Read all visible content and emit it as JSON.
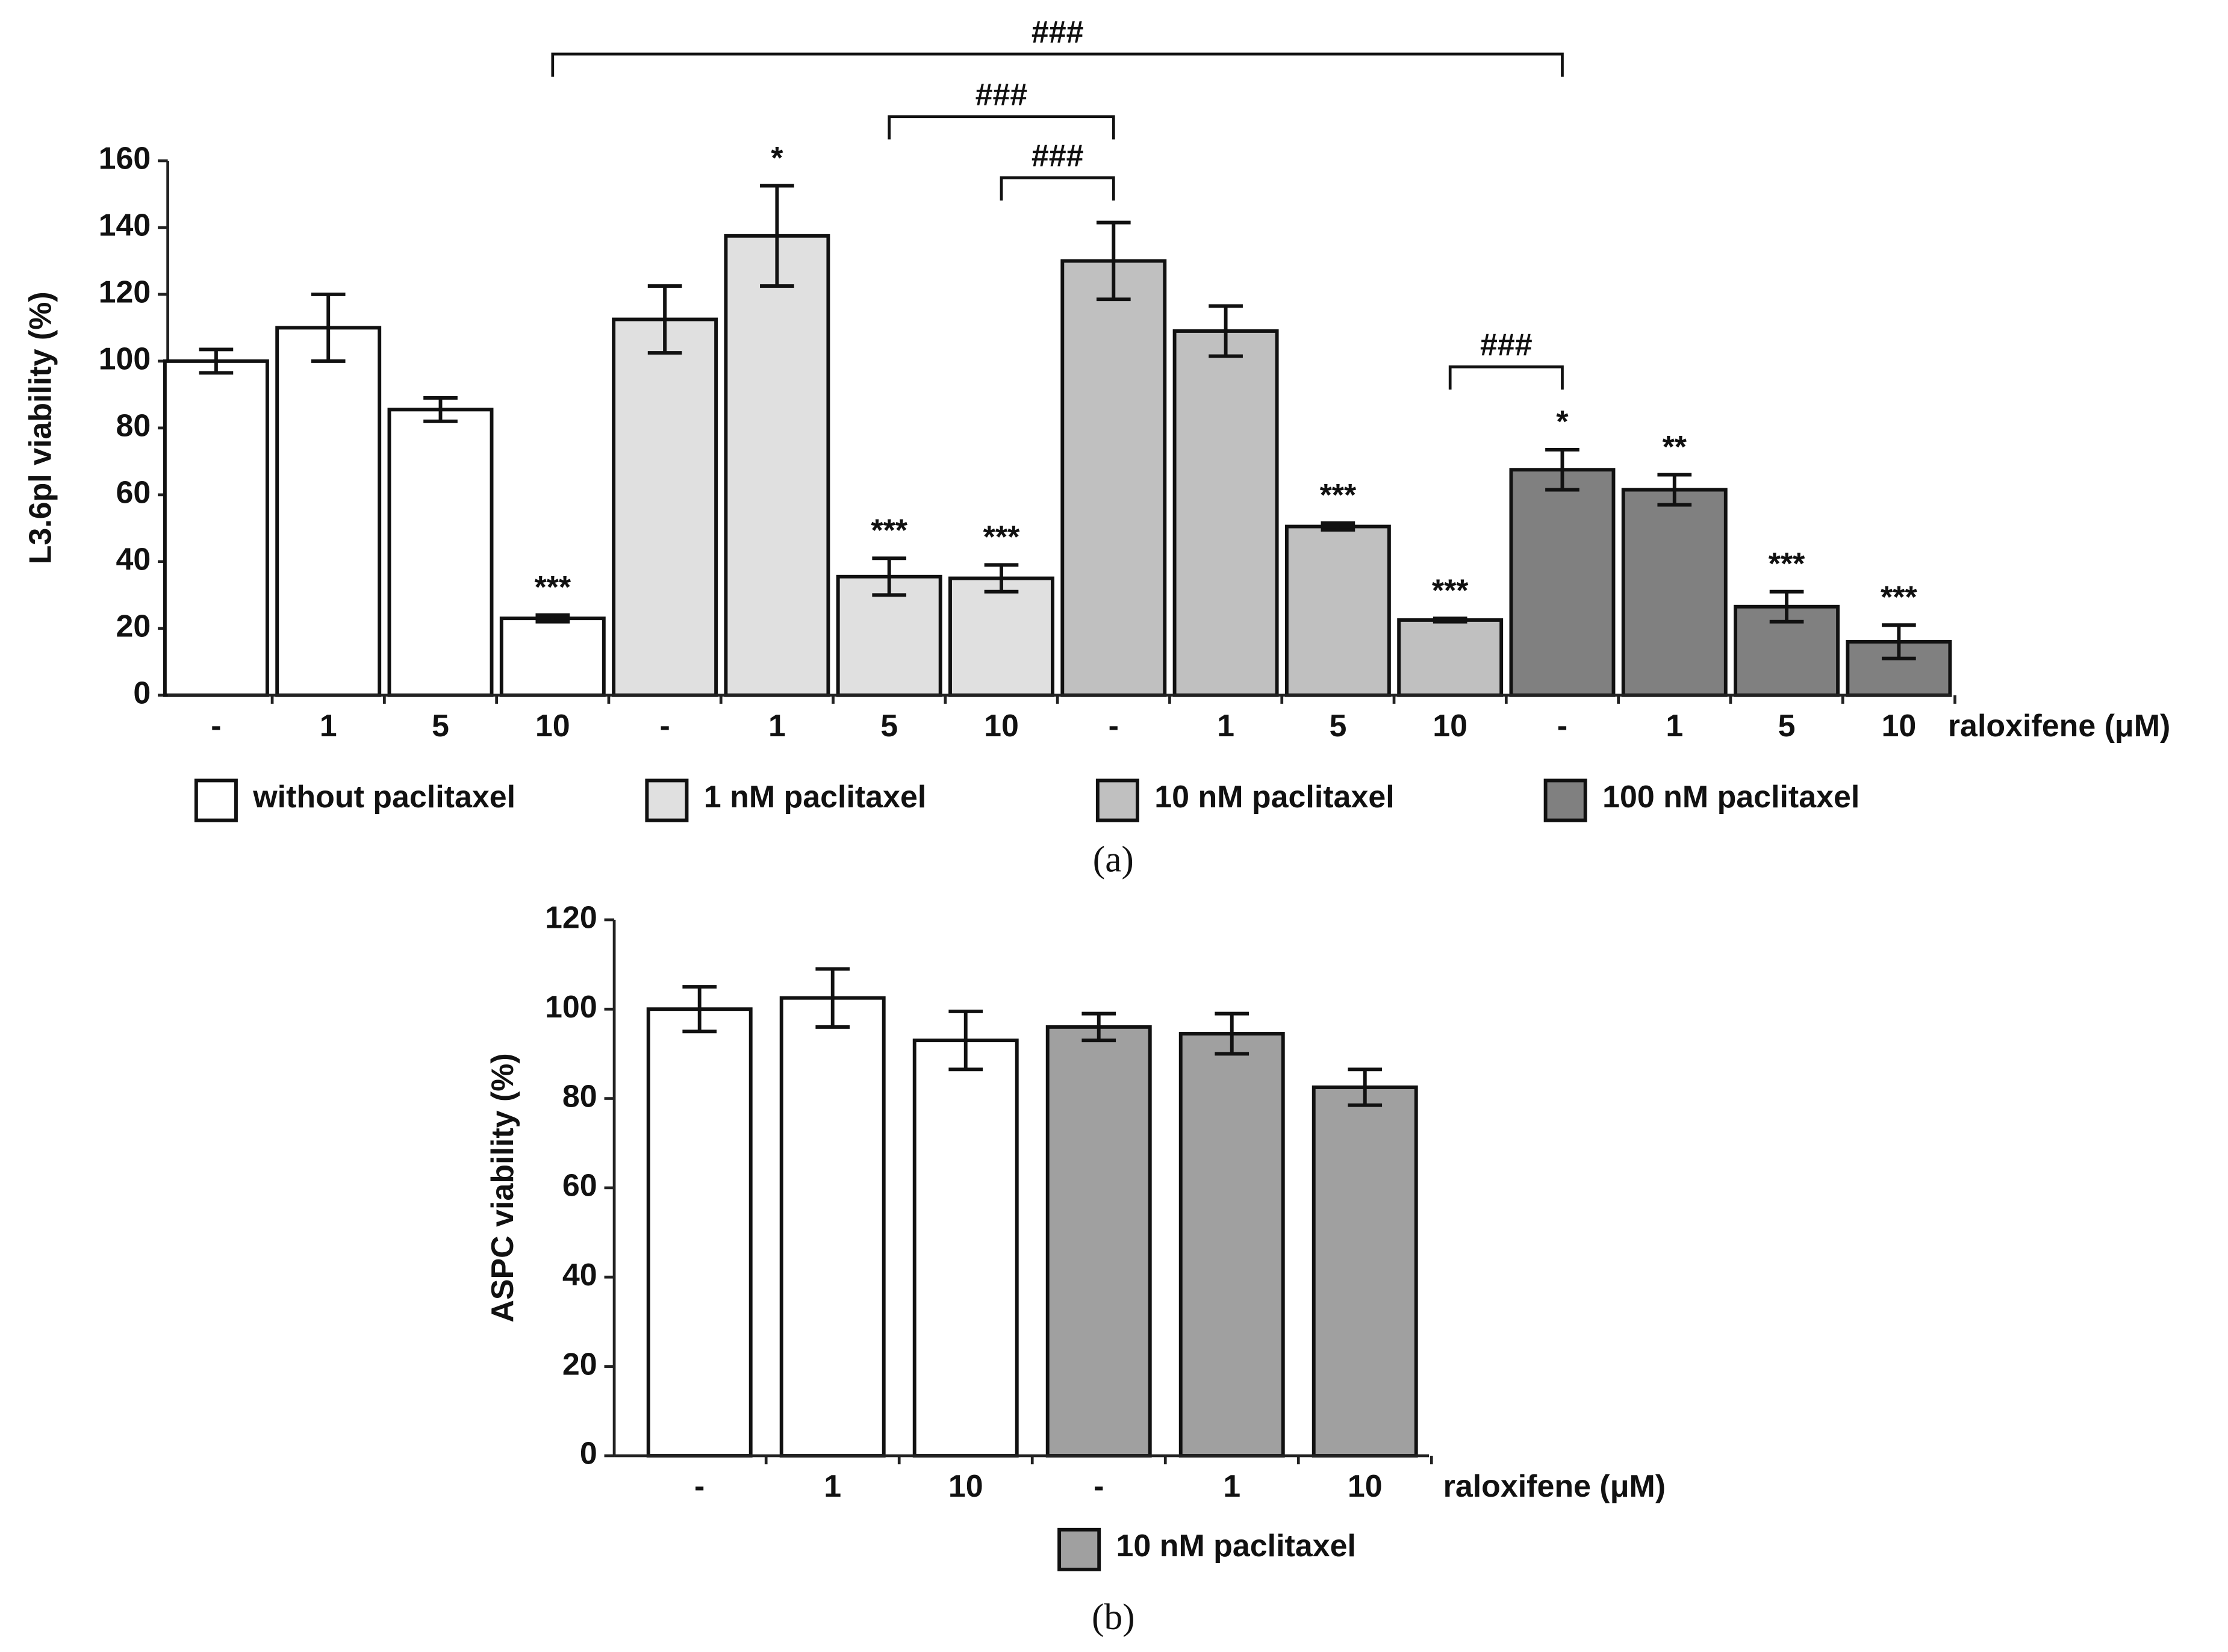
{
  "chart_data": [
    {
      "type": "bar",
      "caption": "(a)",
      "y_label": "L3.6pl viability (%)",
      "x_label": "raloxifene (μM)",
      "categories": [
        "-",
        "1",
        "5",
        "10",
        "-",
        "1",
        "5",
        "10",
        "-",
        "1",
        "5",
        "10",
        "-",
        "1",
        "5",
        "10"
      ],
      "series": [
        {
          "name": "without paclitaxel",
          "color": "#ffffff",
          "values": [
            100,
            110,
            85.5,
            23,
            null,
            null,
            null,
            null,
            null,
            null,
            null,
            null,
            null,
            null,
            null,
            null
          ],
          "errors": [
            3.5,
            10,
            3.5,
            1,
            null,
            null,
            null,
            null,
            null,
            null,
            null,
            null,
            null,
            null,
            null,
            null
          ]
        },
        {
          "name": "1 nM paclitaxel",
          "color": "#e0e0e0",
          "values": [
            null,
            null,
            null,
            null,
            112.5,
            137.5,
            35.5,
            35,
            null,
            null,
            null,
            null,
            null,
            null,
            null,
            null
          ],
          "errors": [
            null,
            null,
            null,
            null,
            10,
            15,
            5.5,
            4,
            null,
            null,
            null,
            null,
            null,
            null,
            null,
            null
          ]
        },
        {
          "name": "10 nM paclitaxel",
          "color": "#c0c0c0",
          "values": [
            null,
            null,
            null,
            null,
            null,
            null,
            null,
            null,
            130,
            109,
            50.5,
            22.5,
            null,
            null,
            null,
            null
          ],
          "errors": [
            null,
            null,
            null,
            null,
            null,
            null,
            null,
            null,
            11.5,
            7.5,
            1,
            0.5,
            null,
            null,
            null,
            null
          ]
        },
        {
          "name": "100 nM paclitaxel",
          "color": "#808080",
          "values": [
            null,
            null,
            null,
            null,
            null,
            null,
            null,
            null,
            null,
            null,
            null,
            null,
            67.5,
            61.5,
            26.5,
            16
          ],
          "errors": [
            null,
            null,
            null,
            null,
            null,
            null,
            null,
            null,
            null,
            null,
            null,
            null,
            6,
            4.5,
            4.5,
            5
          ]
        }
      ],
      "annotations": [
        null,
        null,
        null,
        "***",
        null,
        "*",
        "***",
        "***",
        null,
        null,
        "***",
        "***",
        "*",
        "**",
        "***",
        "***"
      ],
      "bracket_labels": [
        "###",
        "###",
        "###",
        "###"
      ],
      "ylim": [
        0,
        160
      ],
      "yticks": [
        0,
        20,
        40,
        60,
        80,
        100,
        120,
        140,
        160
      ]
    },
    {
      "type": "bar",
      "caption": "(b)",
      "y_label": "ASPC viability (%)",
      "x_label": "raloxifene (μM)",
      "categories": [
        "-",
        "1",
        "10",
        "-",
        "1",
        "10"
      ],
      "series": [
        {
          "color": "#ffffff",
          "values": [
            100,
            102.5,
            93,
            null,
            null,
            null
          ],
          "errors": [
            5,
            6.5,
            6.5,
            null,
            null,
            null
          ]
        },
        {
          "name": "10 nM paclitaxel",
          "color": "#a0a0a0",
          "values": [
            null,
            null,
            null,
            96,
            94.5,
            82.5
          ],
          "errors": [
            null,
            null,
            null,
            3,
            4.5,
            4
          ]
        }
      ],
      "ylim": [
        0,
        120
      ],
      "yticks": [
        0,
        20,
        40,
        60,
        80,
        100,
        120
      ]
    }
  ]
}
